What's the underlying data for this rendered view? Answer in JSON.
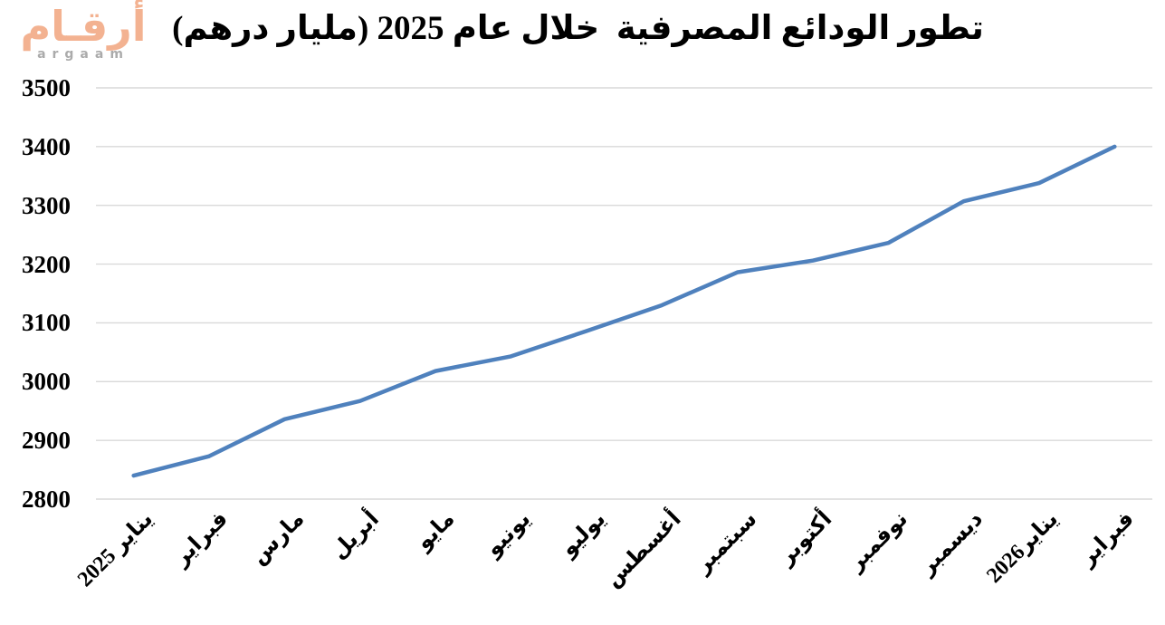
{
  "logo": {
    "arabic": "أرقـام",
    "latin": "argaam",
    "arabic_color": "#F3B291",
    "latin_color": "#ABABAB"
  },
  "chart_data": {
    "type": "line",
    "title": "تطور الودائع المصرفية  خلال عام 2025 (مليار درهم)",
    "categories": [
      "يناير 2025",
      "فبراير",
      "مارس",
      "أبريل",
      "مايو",
      "يونيو",
      "يوليو",
      "أغسطس",
      "سبتمبر",
      "أكتوبر",
      "نوفمبر",
      "ديسمبر",
      "يناير2026",
      "فبراير"
    ],
    "values": [
      2840,
      2873,
      2936,
      2967,
      3018,
      3043,
      3086,
      3130,
      3186,
      3206,
      3236,
      3307,
      3338,
      3400
    ],
    "xlabel": "",
    "ylabel": "",
    "ylim": [
      2800,
      3500
    ],
    "yticks": [
      2800,
      2900,
      3000,
      3100,
      3200,
      3300,
      3400,
      3500
    ],
    "grid": true,
    "legend": false,
    "line_color": "#4F81BD",
    "gridline_color": "#D9D9D9",
    "text_color": "#000000"
  }
}
